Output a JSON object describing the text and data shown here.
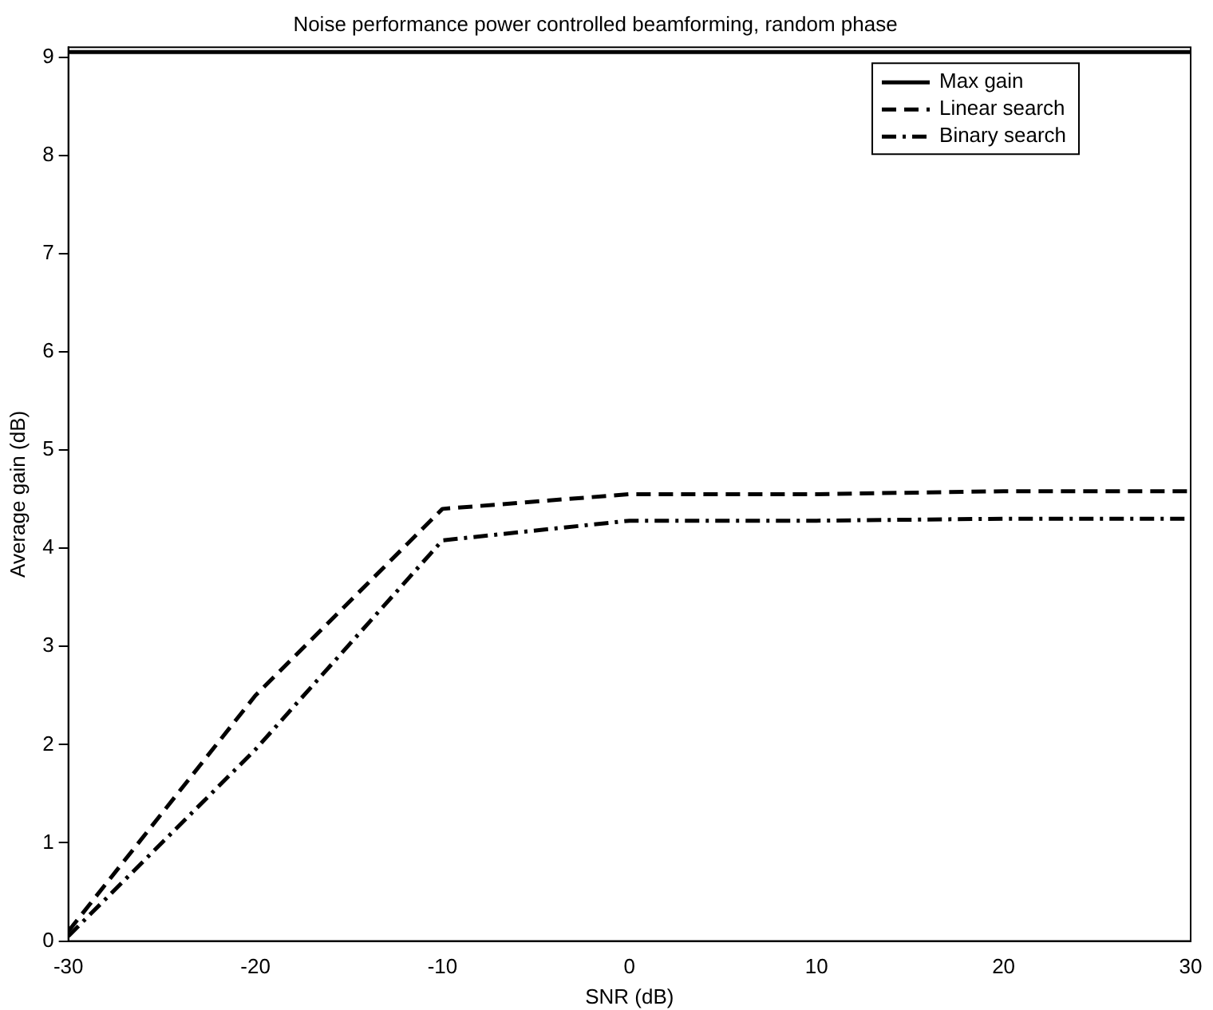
{
  "chart_data": {
    "type": "line",
    "title": "Noise performance power controlled beamforming, random phase",
    "xlabel": "SNR (dB)",
    "ylabel": "Average gain (dB)",
    "x": [
      -30,
      -20,
      -10,
      0,
      10,
      20,
      30
    ],
    "series": [
      {
        "name": "Max gain",
        "color": "#000000",
        "line_style": "solid",
        "values": [
          9.05,
          9.05,
          9.05,
          9.05,
          9.05,
          9.05,
          9.05
        ]
      },
      {
        "name": "Linear search",
        "color": "#000000",
        "line_style": "dashed",
        "values": [
          0.1,
          2.5,
          4.4,
          4.55,
          4.55,
          4.58,
          4.58
        ]
      },
      {
        "name": "Binary search",
        "color": "#000000",
        "line_style": "dashdot",
        "values": [
          0.05,
          1.95,
          4.08,
          4.28,
          4.28,
          4.3,
          4.3
        ]
      }
    ],
    "xlim": [
      -30,
      30
    ],
    "xticks": [
      -30,
      -20,
      -10,
      0,
      10,
      20,
      30
    ],
    "ylim": [
      0,
      9.1
    ],
    "yticks": [
      0,
      1,
      2,
      3,
      4,
      5,
      6,
      7,
      8,
      9
    ],
    "grid": false,
    "legend": "top right",
    "marker": "none"
  }
}
